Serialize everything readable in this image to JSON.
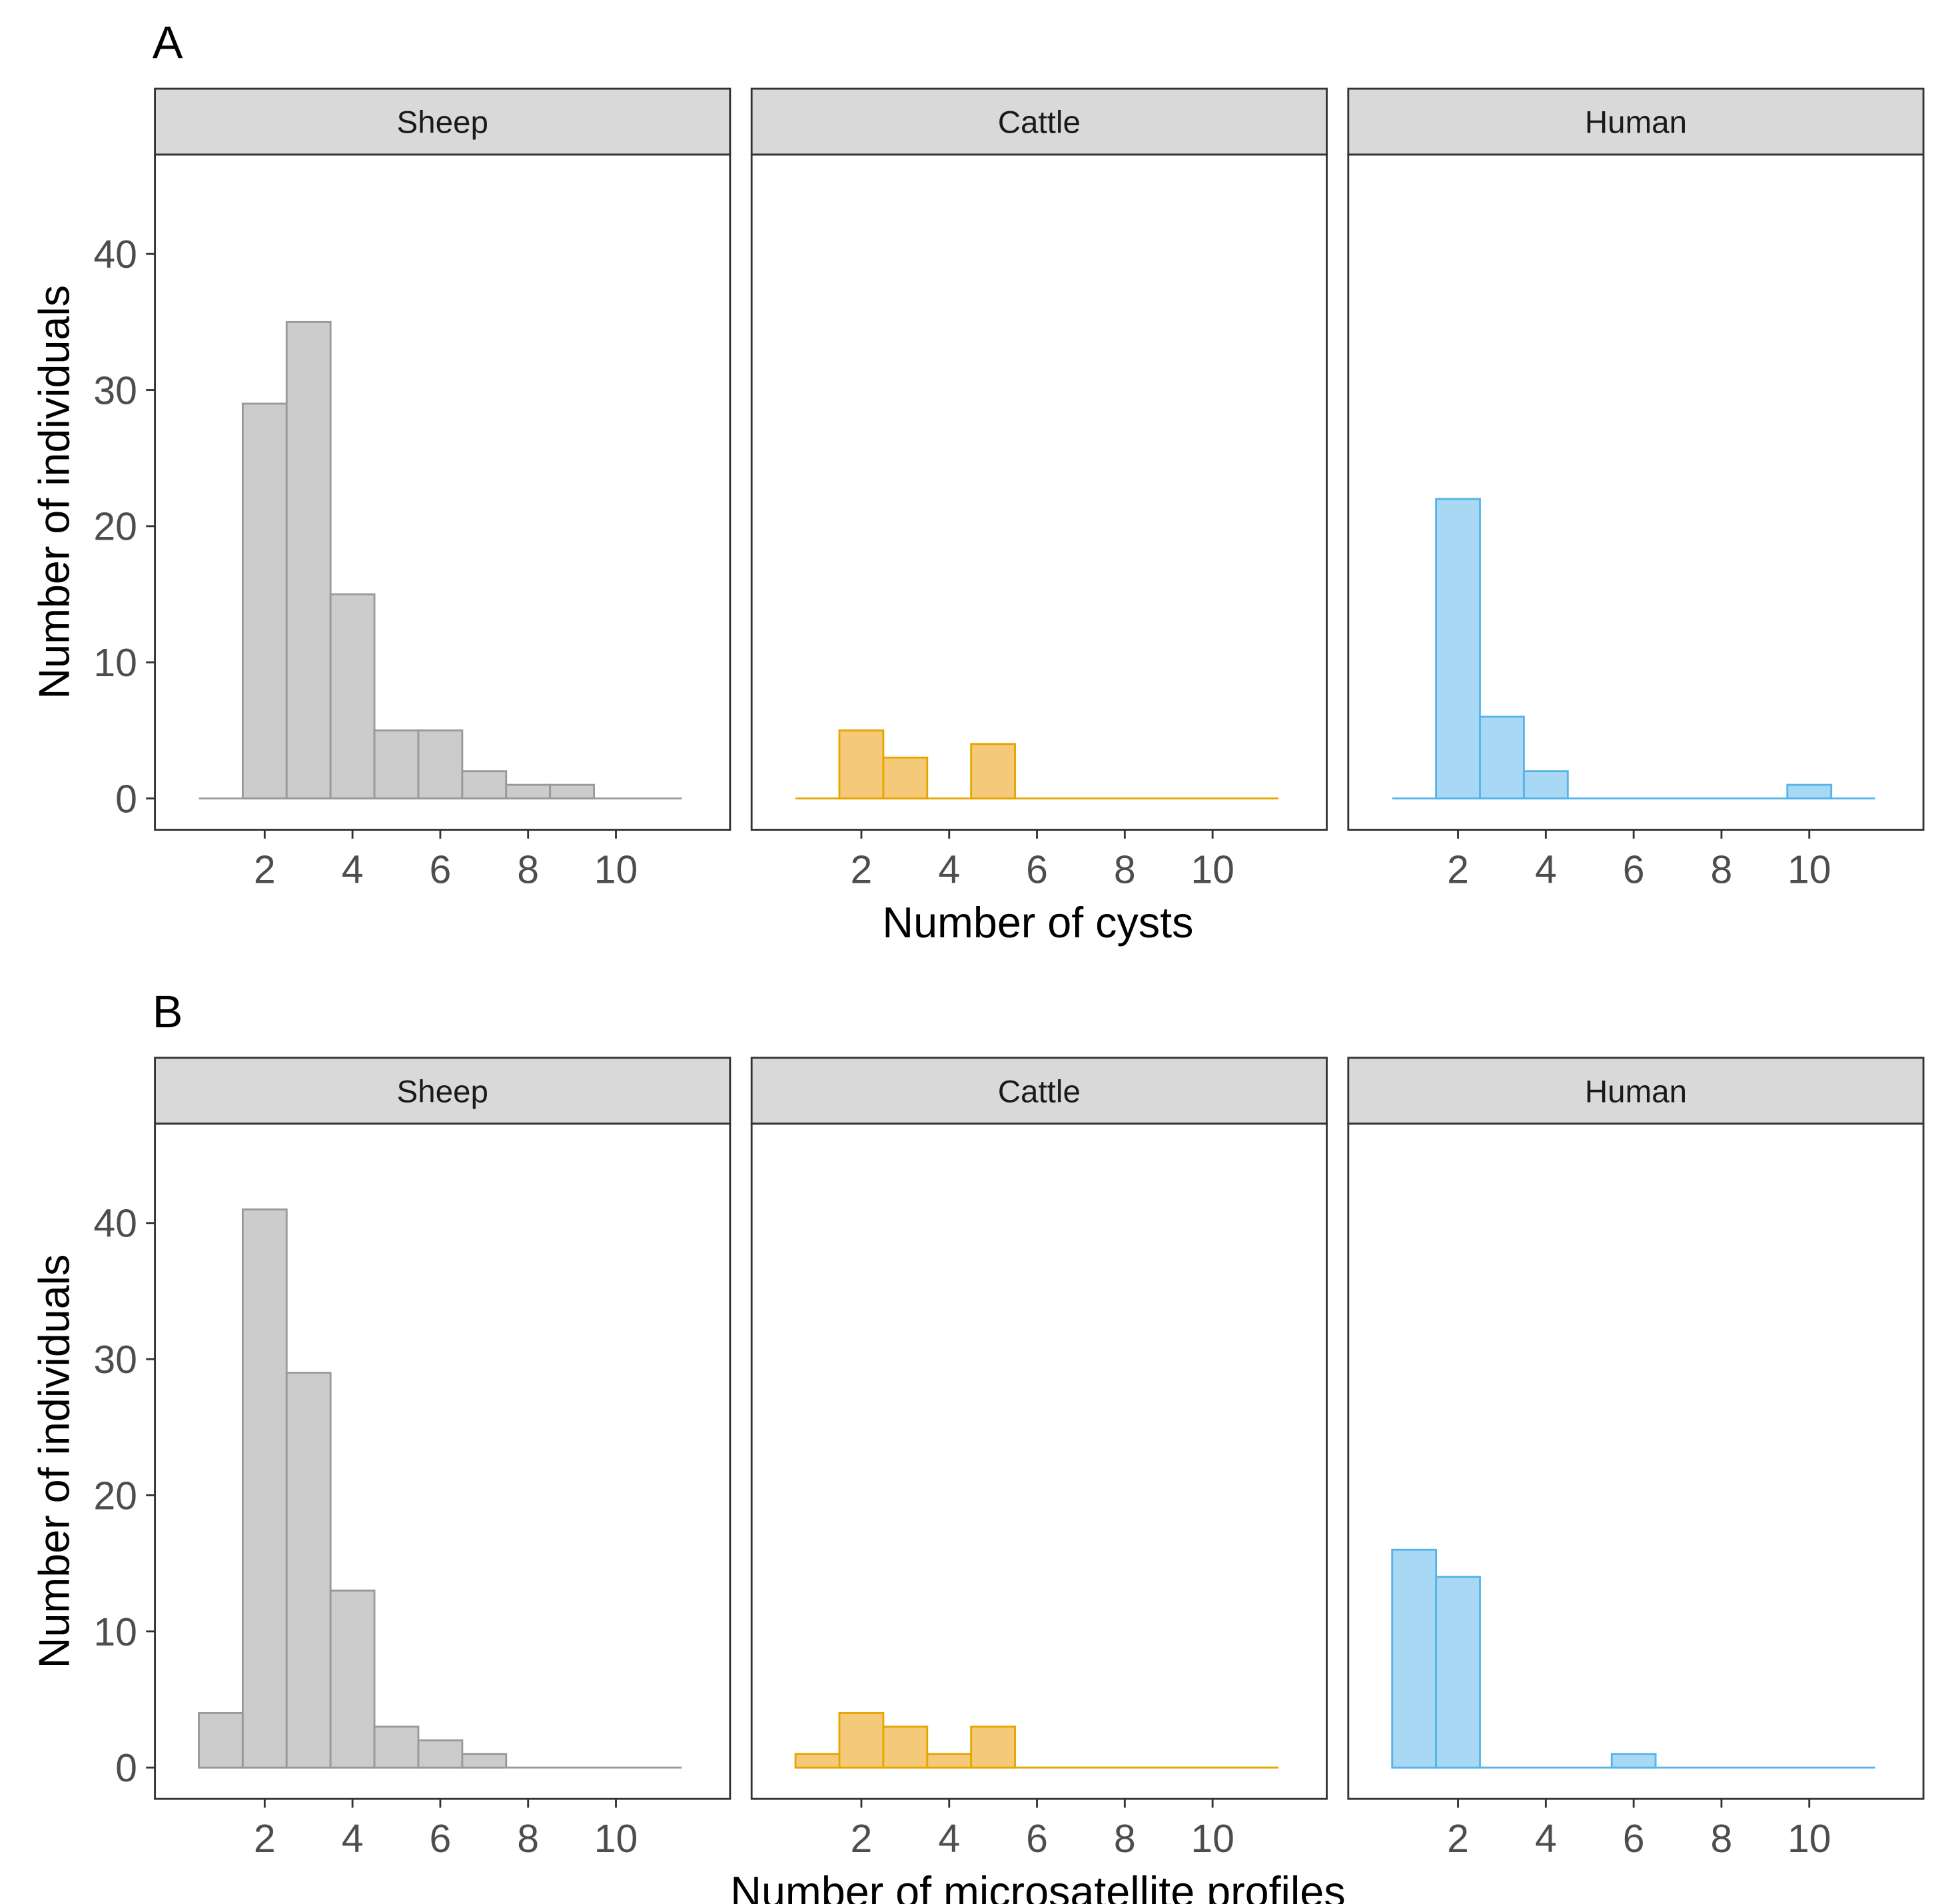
{
  "chart_data": [
    {
      "type": "bar",
      "tag": "A",
      "xlabel": "Number of cysts",
      "ylabel": "Number of individuals",
      "x": [
        1,
        2,
        3,
        4,
        5,
        6,
        7,
        8,
        9,
        10,
        11
      ],
      "xlim": [
        -0.5,
        12.6
      ],
      "ylim": [
        -2.3,
        47.3
      ],
      "xticks": [
        2,
        4,
        6,
        8,
        10
      ],
      "yticks": [
        0,
        10,
        20,
        30,
        40
      ],
      "grid": false,
      "series": [
        {
          "name": "Sheep",
          "fill": "#cccccc",
          "stroke": "#999999",
          "values": [
            0,
            29,
            35,
            15,
            5,
            5,
            2,
            1,
            1,
            0,
            0
          ]
        },
        {
          "name": "Cattle",
          "fill": "#f5c97a",
          "stroke": "#e6a600",
          "values": [
            0,
            5,
            3,
            0,
            4,
            0,
            0,
            0,
            0,
            0,
            0
          ]
        },
        {
          "name": "Human",
          "fill": "#a8d8f4",
          "stroke": "#56b4e9",
          "values": [
            0,
            22,
            6,
            2,
            0,
            0,
            0,
            0,
            0,
            1,
            0
          ]
        }
      ]
    },
    {
      "type": "bar",
      "tag": "B",
      "xlabel": "Number of microsatellite profiles",
      "ylabel": "Number of individuals",
      "x": [
        1,
        2,
        3,
        4,
        5,
        6,
        7,
        8,
        9,
        10,
        11
      ],
      "xlim": [
        -0.5,
        12.6
      ],
      "ylim": [
        -2.3,
        47.3
      ],
      "xticks": [
        2,
        4,
        6,
        8,
        10
      ],
      "yticks": [
        0,
        10,
        20,
        30,
        40
      ],
      "grid": false,
      "series": [
        {
          "name": "Sheep",
          "fill": "#cccccc",
          "stroke": "#999999",
          "values": [
            4,
            41,
            29,
            13,
            3,
            2,
            1,
            0,
            0,
            0,
            0
          ]
        },
        {
          "name": "Cattle",
          "fill": "#f5c97a",
          "stroke": "#e6a600",
          "values": [
            1,
            4,
            3,
            1,
            3,
            0,
            0,
            0,
            0,
            0,
            0
          ]
        },
        {
          "name": "Human",
          "fill": "#a8d8f4",
          "stroke": "#56b4e9",
          "values": [
            16,
            14,
            0,
            0,
            0,
            1,
            0,
            0,
            0,
            0,
            0
          ]
        }
      ]
    }
  ]
}
